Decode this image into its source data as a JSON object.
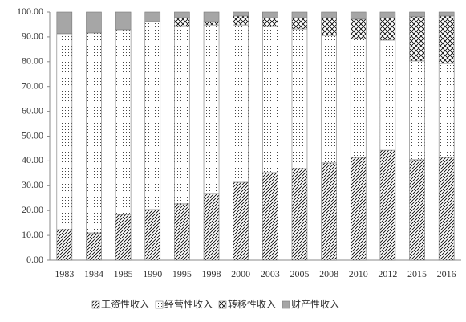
{
  "chart_data": {
    "type": "stacked_bar",
    "categories": [
      "1983",
      "1984",
      "1985",
      "1990",
      "1995",
      "1998",
      "2000",
      "2003",
      "2005",
      "2008",
      "2010",
      "2012",
      "2015",
      "2016"
    ],
    "series": [
      {
        "name": "工资性收入",
        "color": "#000000",
        "pattern": "diagonal",
        "values": [
          12.3,
          11.0,
          18.4,
          20.4,
          22.7,
          26.9,
          31.4,
          35.3,
          36.9,
          39.2,
          41.4,
          44.3,
          40.5,
          41.4
        ]
      },
      {
        "name": "经营性收入",
        "color": "#000000",
        "pattern": "dots",
        "values": [
          79.0,
          80.6,
          74.5,
          75.7,
          71.5,
          67.9,
          63.4,
          58.9,
          56.3,
          51.4,
          47.9,
          44.4,
          39.8,
          37.9
        ]
      },
      {
        "name": "转移性收入",
        "color": "#000000",
        "pattern": "cross",
        "values": [
          0,
          0,
          0,
          0,
          3.5,
          1.3,
          3.6,
          3.5,
          4.5,
          7.1,
          7.8,
          9.0,
          17.8,
          19.1
        ]
      },
      {
        "name": "财产性收入",
        "color": "#a6a6a6",
        "pattern": "solid",
        "values": [
          8.7,
          8.4,
          7.1,
          3.9,
          2.3,
          3.9,
          1.6,
          2.3,
          2.3,
          2.3,
          2.9,
          2.3,
          1.9,
          1.6
        ]
      }
    ],
    "ylim": [
      0,
      100
    ],
    "yticks": [
      {
        "value": 0,
        "label": "0.00"
      },
      {
        "value": 10,
        "label": "10.00"
      },
      {
        "value": 20,
        "label": "20.00"
      },
      {
        "value": 30,
        "label": "30.00"
      },
      {
        "value": 40,
        "label": "40.00"
      },
      {
        "value": 50,
        "label": "50.00"
      },
      {
        "value": 60,
        "label": "60.00"
      },
      {
        "value": 70,
        "label": "70.00"
      },
      {
        "value": 80,
        "label": "80.00"
      },
      {
        "value": 90,
        "label": "90.00"
      },
      {
        "value": 100,
        "label": "100.00"
      }
    ],
    "grid": false,
    "legend": "bottom"
  }
}
